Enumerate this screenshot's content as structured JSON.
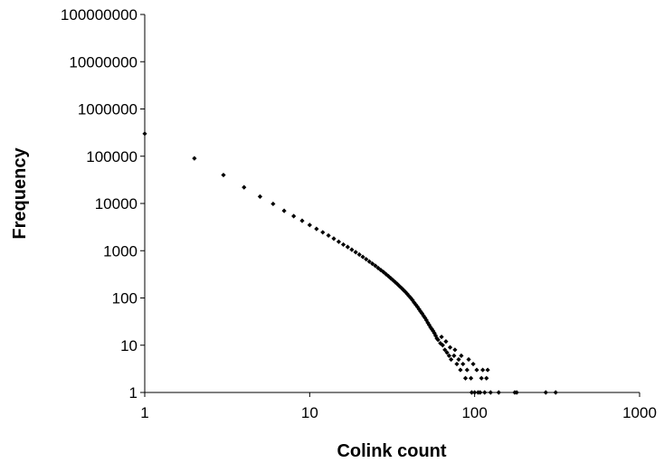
{
  "chart_data": {
    "type": "scatter",
    "title": "",
    "xlabel": "Colink count",
    "ylabel": "Frequency",
    "x_scale": "log",
    "y_scale": "log",
    "xlim": [
      1,
      1000
    ],
    "ylim": [
      1,
      100000000
    ],
    "x_ticks": [
      "1",
      "10",
      "100",
      "1000"
    ],
    "y_ticks": [
      "1",
      "10",
      "100",
      "1000",
      "10000",
      "100000",
      "1000000",
      "10000000",
      "100000000"
    ],
    "grid": false,
    "legend": "none",
    "marker": "diamond",
    "marker_color": "#000000",
    "series": [
      {
        "points": [
          [
            1,
            300000
          ],
          [
            2,
            90000
          ],
          [
            3,
            40000
          ],
          [
            4,
            22000
          ],
          [
            5,
            14000
          ],
          [
            6,
            9800
          ],
          [
            7,
            7000
          ],
          [
            8,
            5400
          ],
          [
            9,
            4300
          ],
          [
            10,
            3500
          ],
          [
            11,
            2900
          ],
          [
            12,
            2450
          ],
          [
            13,
            2100
          ],
          [
            14,
            1800
          ],
          [
            15,
            1550
          ],
          [
            16,
            1350
          ],
          [
            17,
            1200
          ],
          [
            18,
            1050
          ],
          [
            19,
            930
          ],
          [
            20,
            830
          ],
          [
            21,
            740
          ],
          [
            22,
            660
          ],
          [
            23,
            590
          ],
          [
            24,
            530
          ],
          [
            25,
            480
          ],
          [
            26,
            430
          ],
          [
            27,
            390
          ],
          [
            28,
            355
          ],
          [
            29,
            320
          ],
          [
            30,
            290
          ],
          [
            31,
            262
          ],
          [
            32,
            238
          ],
          [
            33,
            216
          ],
          [
            34,
            197
          ],
          [
            35,
            178
          ],
          [
            36,
            163
          ],
          [
            37,
            148
          ],
          [
            38,
            135
          ],
          [
            39,
            122
          ],
          [
            40,
            110
          ],
          [
            41,
            100
          ],
          [
            42,
            90
          ],
          [
            43,
            80
          ],
          [
            44,
            72
          ],
          [
            45,
            65
          ],
          [
            46,
            58
          ],
          [
            47,
            52
          ],
          [
            48,
            47
          ],
          [
            49,
            42
          ],
          [
            50,
            38
          ],
          [
            51,
            34
          ],
          [
            52,
            30
          ],
          [
            53,
            27
          ],
          [
            54,
            24
          ],
          [
            55,
            22
          ],
          [
            56,
            20
          ],
          [
            57,
            18
          ],
          [
            58,
            16
          ],
          [
            59,
            14
          ],
          [
            60,
            13
          ],
          [
            62,
            11
          ],
          [
            64,
            10
          ],
          [
            66,
            8
          ],
          [
            68,
            7
          ],
          [
            70,
            6
          ],
          [
            72,
            5
          ],
          [
            75,
            6
          ],
          [
            78,
            4
          ],
          [
            80,
            5
          ],
          [
            82,
            3
          ],
          [
            85,
            4
          ],
          [
            88,
            2
          ],
          [
            90,
            3
          ],
          [
            95,
            2
          ],
          [
            100,
            1
          ],
          [
            105,
            1
          ],
          [
            110,
            2
          ],
          [
            115,
            1
          ],
          [
            120,
            3
          ],
          [
            125,
            1
          ],
          [
            140,
            1
          ],
          [
            175,
            1
          ],
          [
            180,
            1
          ],
          [
            270,
            1
          ],
          [
            310,
            1
          ],
          [
            63,
            15
          ],
          [
            67,
            12
          ],
          [
            71,
            9
          ],
          [
            76,
            8
          ],
          [
            83,
            6
          ],
          [
            92,
            5
          ],
          [
            98,
            4
          ],
          [
            103,
            3
          ],
          [
            112,
            3
          ],
          [
            118,
            2
          ],
          [
            96,
            1
          ],
          [
            108,
            1
          ]
        ]
      }
    ]
  }
}
